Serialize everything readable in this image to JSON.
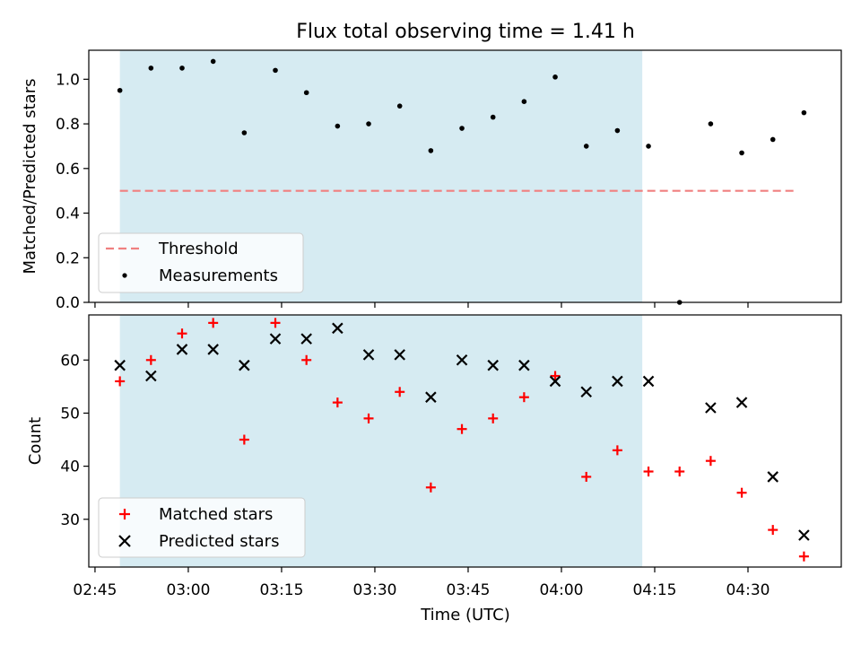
{
  "figure": {
    "title": "Flux total observing time = 1.41 h",
    "xlabel": "Time (UTC)"
  },
  "chart_data": [
    {
      "type": "scatter",
      "ylabel": "Matched/Predicted stars",
      "ylim": [
        0,
        1.13
      ],
      "xlim": [
        "02:44",
        "04:45"
      ],
      "y_ticks": [
        "0.0",
        "0.2",
        "0.4",
        "0.6",
        "0.8",
        "1.0"
      ],
      "shaded_span": [
        "02:49",
        "04:13"
      ],
      "threshold": {
        "value": 0.5,
        "x_start": "02:49",
        "x_end": "04:38",
        "color": "#f08080"
      },
      "x": [
        "02:49",
        "02:54",
        "02:59",
        "03:04",
        "03:09",
        "03:14",
        "03:19",
        "03:24",
        "03:29",
        "03:34",
        "03:39",
        "03:44",
        "03:49",
        "03:54",
        "03:59",
        "04:04",
        "04:09",
        "04:14",
        "04:19",
        "04:24",
        "04:29",
        "04:34",
        "04:39"
      ],
      "series": [
        {
          "name": "Measurements",
          "color": "#000000",
          "values": [
            0.95,
            1.05,
            1.05,
            1.08,
            0.76,
            1.04,
            0.94,
            0.79,
            0.8,
            0.88,
            0.68,
            0.78,
            0.83,
            0.9,
            1.01,
            0.7,
            0.77,
            0.7,
            0.0,
            0.8,
            0.67,
            0.73,
            0.85
          ]
        }
      ],
      "legend": {
        "placement": "lower-left",
        "entries": [
          "Threshold",
          "Measurements"
        ]
      }
    },
    {
      "type": "scatter",
      "ylabel": "Count",
      "ylim": [
        21,
        68.5
      ],
      "xlim": [
        "02:44",
        "04:45"
      ],
      "y_ticks": [
        "30",
        "40",
        "50",
        "60"
      ],
      "x_ticks": [
        "02:45",
        "03:00",
        "03:15",
        "03:30",
        "03:45",
        "04:00",
        "04:15",
        "04:30"
      ],
      "shaded_span": [
        "02:49",
        "04:13"
      ],
      "x": [
        "02:49",
        "02:54",
        "02:59",
        "03:04",
        "03:09",
        "03:14",
        "03:19",
        "03:24",
        "03:29",
        "03:34",
        "03:39",
        "03:44",
        "03:49",
        "03:54",
        "03:59",
        "04:04",
        "04:09",
        "04:14",
        "04:19",
        "04:24",
        "04:29",
        "04:34",
        "04:39"
      ],
      "series": [
        {
          "name": "Matched stars",
          "marker": "plus",
          "color": "#ff0000",
          "values": [
            56,
            60,
            65,
            67,
            45,
            67,
            60,
            52,
            49,
            54,
            36,
            47,
            49,
            53,
            57,
            38,
            43,
            39,
            39,
            41,
            35,
            28,
            23
          ]
        },
        {
          "name": "Predicted stars",
          "marker": "x",
          "color": "#000000",
          "values": [
            59,
            57,
            62,
            62,
            59,
            64,
            64,
            66,
            61,
            61,
            53,
            60,
            59,
            59,
            56,
            54,
            56,
            56,
            null,
            51,
            52,
            38,
            27
          ]
        }
      ],
      "legend": {
        "placement": "lower-left",
        "entries": [
          "Matched stars",
          "Predicted stars"
        ]
      }
    }
  ],
  "colors": {
    "shade": "#add8e6",
    "threshold": "#f08080",
    "matched": "#ff0000",
    "predicted": "#000000"
  }
}
